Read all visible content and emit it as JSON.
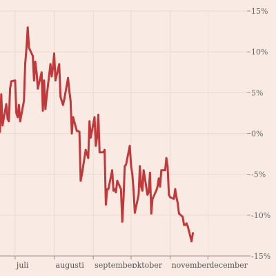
{
  "chart_data": {
    "type": "line",
    "title": "",
    "xlabel": "",
    "ylabel": "",
    "ylim": [
      -15,
      15
    ],
    "y_ticks": [
      15,
      10,
      5,
      0,
      -5,
      -10,
      -15
    ],
    "y_tick_labels": [
      "15%",
      "10%",
      "5%",
      "0%",
      "-5%",
      "-10%",
      "-15%"
    ],
    "x_range": [
      "2013-06-19",
      "2013-12-31"
    ],
    "x_ticks": [
      {
        "date": "2013-07-01",
        "label": "juli"
      },
      {
        "date": "2013-08-01",
        "label": "augusti"
      },
      {
        "date": "2013-09-01",
        "label": "september"
      },
      {
        "date": "2013-10-01",
        "label": "oktober"
      },
      {
        "date": "2013-11-01",
        "label": "november"
      },
      {
        "date": "2013-12-01",
        "label": "december"
      }
    ],
    "grid": true,
    "series": [
      {
        "color": "#c0393b",
        "points": [
          [
            "2013-06-19",
            0.2
          ],
          [
            "2013-06-20",
            4.8
          ],
          [
            "2013-06-21",
            1.0
          ],
          [
            "2013-06-24",
            3.6
          ],
          [
            "2013-06-25",
            1.8
          ],
          [
            "2013-06-26",
            1.5
          ],
          [
            "2013-06-27",
            5.5
          ],
          [
            "2013-06-28",
            6.4
          ],
          [
            "2013-07-01",
            6.5
          ],
          [
            "2013-07-02",
            2.5
          ],
          [
            "2013-07-03",
            2.0
          ],
          [
            "2013-07-04",
            3.5
          ],
          [
            "2013-07-05",
            1.5
          ],
          [
            "2013-07-08",
            4.0
          ],
          [
            "2013-07-09",
            8.5
          ],
          [
            "2013-07-10",
            10.5
          ],
          [
            "2013-07-11",
            13.0
          ],
          [
            "2013-07-12",
            10.5
          ],
          [
            "2013-07-15",
            9.5
          ],
          [
            "2013-07-16",
            6.5
          ],
          [
            "2013-07-17",
            8.8
          ],
          [
            "2013-07-18",
            7.5
          ],
          [
            "2013-07-19",
            5.5
          ],
          [
            "2013-07-22",
            7.5
          ],
          [
            "2013-07-23",
            2.8
          ],
          [
            "2013-07-24",
            6.5
          ],
          [
            "2013-07-25",
            3.0
          ],
          [
            "2013-07-26",
            4.5
          ],
          [
            "2013-07-29",
            8.5
          ],
          [
            "2013-07-30",
            7.0
          ],
          [
            "2013-07-31",
            8.0
          ],
          [
            "2013-08-01",
            9.8
          ],
          [
            "2013-08-02",
            6.5
          ],
          [
            "2013-08-05",
            8.5
          ],
          [
            "2013-08-06",
            4.5
          ],
          [
            "2013-08-07",
            4.0
          ],
          [
            "2013-08-08",
            3.5
          ],
          [
            "2013-08-09",
            4.2
          ],
          [
            "2013-08-12",
            6.8
          ],
          [
            "2013-08-13",
            5.2
          ],
          [
            "2013-08-14",
            4.0
          ],
          [
            "2013-08-15",
            0.0
          ],
          [
            "2013-08-16",
            2.0
          ],
          [
            "2013-08-19",
            0.3
          ],
          [
            "2013-08-20",
            0.3
          ],
          [
            "2013-08-21",
            0.2
          ],
          [
            "2013-08-22",
            -5.8
          ],
          [
            "2013-08-23",
            -5.0
          ],
          [
            "2013-08-26",
            -2.0
          ],
          [
            "2013-08-27",
            -2.5
          ],
          [
            "2013-08-28",
            -3.0
          ],
          [
            "2013-08-29",
            1.5
          ],
          [
            "2013-08-30",
            -0.5
          ],
          [
            "2013-09-02",
            2.0
          ],
          [
            "2013-09-03",
            -1.5
          ],
          [
            "2013-09-04",
            -0.5
          ],
          [
            "2013-09-05",
            2.3
          ],
          [
            "2013-09-06",
            -2.3
          ],
          [
            "2013-09-09",
            -2.3
          ],
          [
            "2013-09-10",
            -2.0
          ],
          [
            "2013-09-11",
            -8.7
          ],
          [
            "2013-09-12",
            -6.8
          ],
          [
            "2013-09-13",
            -6.8
          ],
          [
            "2013-09-16",
            -4.5
          ],
          [
            "2013-09-17",
            -7.0
          ],
          [
            "2013-09-18",
            -6.8
          ],
          [
            "2013-09-19",
            -7.2
          ],
          [
            "2013-09-20",
            -5.8
          ],
          [
            "2013-09-23",
            -6.8
          ],
          [
            "2013-09-24",
            -10.8
          ],
          [
            "2013-09-25",
            -8.0
          ],
          [
            "2013-09-26",
            -4.0
          ],
          [
            "2013-09-27",
            -3.8
          ],
          [
            "2013-09-30",
            -1.5
          ],
          [
            "2013-10-01",
            -4.0
          ],
          [
            "2013-10-02",
            -5.0
          ],
          [
            "2013-10-03",
            -7.0
          ],
          [
            "2013-10-04",
            -9.7
          ],
          [
            "2013-10-07",
            -7.5
          ],
          [
            "2013-10-08",
            -4.0
          ],
          [
            "2013-10-09",
            -6.5
          ],
          [
            "2013-10-10",
            -7.0
          ],
          [
            "2013-10-11",
            -4.5
          ],
          [
            "2013-10-14",
            -7.5
          ],
          [
            "2013-10-15",
            -7.2
          ],
          [
            "2013-10-16",
            -4.8
          ],
          [
            "2013-10-17",
            -9.8
          ],
          [
            "2013-10-18",
            -8.0
          ],
          [
            "2013-10-21",
            -7.0
          ],
          [
            "2013-10-22",
            -6.5
          ],
          [
            "2013-10-23",
            -5.5
          ],
          [
            "2013-10-24",
            -6.5
          ],
          [
            "2013-10-25",
            -4.5
          ],
          [
            "2013-10-28",
            -4.5
          ],
          [
            "2013-10-29",
            -3.0
          ],
          [
            "2013-10-30",
            -4.0
          ],
          [
            "2013-10-31",
            -7.5
          ],
          [
            "2013-11-01",
            -7.8
          ],
          [
            "2013-11-04",
            -8.0
          ],
          [
            "2013-11-05",
            -6.8
          ],
          [
            "2013-11-06",
            -7.8
          ],
          [
            "2013-11-07",
            -8.5
          ],
          [
            "2013-11-08",
            -9.8
          ],
          [
            "2013-11-11",
            -10.2
          ],
          [
            "2013-11-12",
            -11.2
          ],
          [
            "2013-11-13",
            -11.2
          ],
          [
            "2013-11-14",
            -11.0
          ],
          [
            "2013-11-15",
            -11.4
          ],
          [
            "2013-11-18",
            -13.2
          ],
          [
            "2013-11-19",
            -12.2
          ]
        ]
      }
    ]
  }
}
